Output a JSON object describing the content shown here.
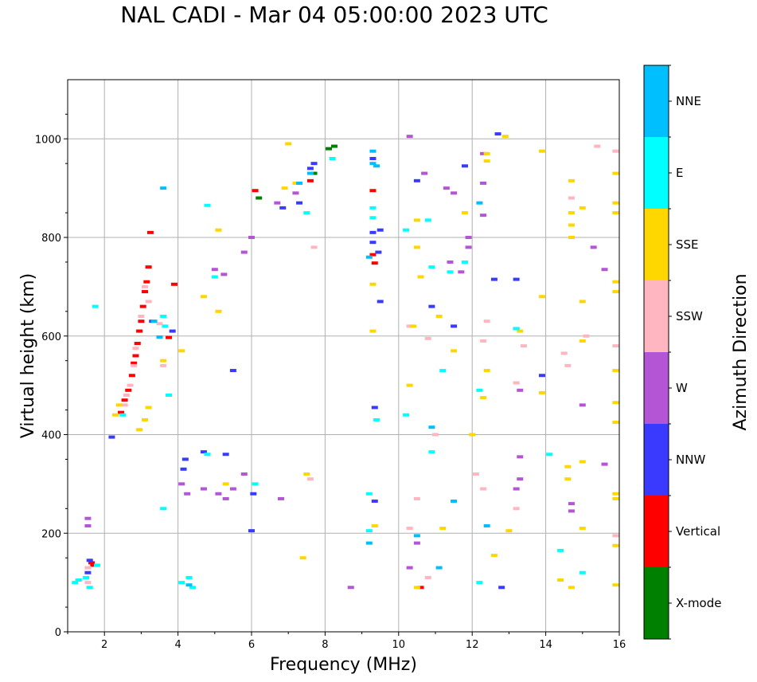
{
  "chart_data": {
    "type": "scatter",
    "title": "NAL CADI - Mar 04 05:00:00 2023 UTC",
    "xlabel": "Frequency (MHz)",
    "ylabel": "Virtual height (km)",
    "xlim": [
      1,
      16
    ],
    "ylim": [
      0,
      1120
    ],
    "grid": true,
    "x_ticks": [
      2,
      4,
      6,
      8,
      10,
      12,
      14,
      16
    ],
    "x_tick_labels": [
      "2",
      "4",
      "6",
      "8",
      "10",
      "12",
      "14",
      "16"
    ],
    "y_ticks": [
      0,
      200,
      400,
      600,
      800,
      1000
    ],
    "y_tick_labels": [
      "0",
      "200",
      "400",
      "600",
      "800",
      "1000"
    ],
    "colorbar": {
      "title": "Azimuth Direction",
      "categories": [
        {
          "name": "X-mode",
          "color": "#008000"
        },
        {
          "name": "Vertical",
          "color": "#ff0000"
        },
        {
          "name": "NNW",
          "color": "#3a3aff"
        },
        {
          "name": "W",
          "color": "#b455d6"
        },
        {
          "name": "SSW",
          "color": "#ffb6c1"
        },
        {
          "name": "SSE",
          "color": "#ffd700"
        },
        {
          "name": "E",
          "color": "#00ffff"
        },
        {
          "name": "NNE",
          "color": "#00bfff"
        }
      ]
    },
    "series": [
      {
        "name": "X-mode",
        "points": [
          [
            8.1,
            980
          ],
          [
            8.25,
            985
          ],
          [
            7.7,
            930
          ],
          [
            6.2,
            880
          ]
        ]
      },
      {
        "name": "Vertical",
        "points": [
          [
            2.45,
            445
          ],
          [
            2.55,
            470
          ],
          [
            2.65,
            490
          ],
          [
            2.75,
            520
          ],
          [
            2.8,
            545
          ],
          [
            2.85,
            560
          ],
          [
            2.9,
            585
          ],
          [
            2.95,
            610
          ],
          [
            3.0,
            630
          ],
          [
            3.05,
            660
          ],
          [
            3.1,
            690
          ],
          [
            3.15,
            710
          ],
          [
            3.2,
            740
          ],
          [
            3.25,
            810
          ],
          [
            3.9,
            705
          ],
          [
            3.75,
            597
          ],
          [
            6.1,
            895
          ],
          [
            7.6,
            915
          ],
          [
            9.3,
            895
          ],
          [
            9.3,
            765
          ],
          [
            9.35,
            748
          ],
          [
            10.6,
            90
          ],
          [
            1.65,
            140
          ],
          [
            1.7,
            135
          ]
        ]
      },
      {
        "name": "NNW",
        "points": [
          [
            1.6,
            145
          ],
          [
            1.55,
            120
          ],
          [
            2.2,
            395
          ],
          [
            3.3,
            630
          ],
          [
            3.85,
            610
          ],
          [
            4.15,
            330
          ],
          [
            4.2,
            350
          ],
          [
            4.7,
            365
          ],
          [
            5.5,
            530
          ],
          [
            5.3,
            360
          ],
          [
            6.0,
            205
          ],
          [
            6.05,
            280
          ],
          [
            6.85,
            860
          ],
          [
            7.3,
            870
          ],
          [
            7.6,
            940
          ],
          [
            7.7,
            950
          ],
          [
            9.3,
            960
          ],
          [
            9.3,
            790
          ],
          [
            9.3,
            810
          ],
          [
            9.5,
            815
          ],
          [
            9.45,
            770
          ],
          [
            9.5,
            670
          ],
          [
            9.35,
            455
          ],
          [
            9.35,
            265
          ],
          [
            10.5,
            915
          ],
          [
            10.9,
            660
          ],
          [
            11.5,
            620
          ],
          [
            12.7,
            1010
          ],
          [
            12.6,
            715
          ],
          [
            13.2,
            715
          ],
          [
            13.2,
            615
          ],
          [
            13.9,
            520
          ],
          [
            11.8,
            945
          ],
          [
            12.8,
            90
          ]
        ]
      },
      {
        "name": "W",
        "points": [
          [
            1.55,
            230
          ],
          [
            1.55,
            215
          ],
          [
            4.1,
            300
          ],
          [
            4.25,
            280
          ],
          [
            4.7,
            290
          ],
          [
            5.1,
            280
          ],
          [
            5.3,
            270
          ],
          [
            5.5,
            290
          ],
          [
            5.8,
            320
          ],
          [
            6.8,
            270
          ],
          [
            5.0,
            735
          ],
          [
            5.25,
            725
          ],
          [
            5.8,
            770
          ],
          [
            6.0,
            800
          ],
          [
            6.7,
            870
          ],
          [
            7.2,
            890
          ],
          [
            8.7,
            90
          ],
          [
            10.3,
            1005
          ],
          [
            10.7,
            930
          ],
          [
            11.3,
            900
          ],
          [
            11.5,
            890
          ],
          [
            12.3,
            970
          ],
          [
            12.3,
            910
          ],
          [
            12.3,
            845
          ],
          [
            11.9,
            800
          ],
          [
            11.4,
            750
          ],
          [
            11.7,
            730
          ],
          [
            11.9,
            780
          ],
          [
            13.3,
            490
          ],
          [
            13.3,
            355
          ],
          [
            13.3,
            310
          ],
          [
            13.2,
            290
          ],
          [
            14.7,
            260
          ],
          [
            14.7,
            245
          ],
          [
            15.0,
            460
          ],
          [
            15.3,
            780
          ],
          [
            15.6,
            735
          ],
          [
            15.6,
            340
          ],
          [
            10.5,
            180
          ],
          [
            10.3,
            130
          ]
        ]
      },
      {
        "name": "SSW",
        "points": [
          [
            2.55,
            460
          ],
          [
            2.6,
            480
          ],
          [
            2.7,
            500
          ],
          [
            2.8,
            540
          ],
          [
            2.85,
            575
          ],
          [
            3.0,
            640
          ],
          [
            3.1,
            700
          ],
          [
            3.2,
            670
          ],
          [
            3.5,
            625
          ],
          [
            3.6,
            540
          ],
          [
            1.55,
            100
          ],
          [
            1.55,
            130
          ],
          [
            7.6,
            310
          ],
          [
            7.7,
            780
          ],
          [
            10.3,
            620
          ],
          [
            10.8,
            595
          ],
          [
            11.0,
            400
          ],
          [
            10.5,
            270
          ],
          [
            10.3,
            210
          ],
          [
            10.8,
            110
          ],
          [
            12.1,
            320
          ],
          [
            12.3,
            290
          ],
          [
            12.4,
            630
          ],
          [
            13.2,
            505
          ],
          [
            13.4,
            580
          ],
          [
            14.7,
            880
          ],
          [
            14.6,
            540
          ],
          [
            14.5,
            565
          ],
          [
            15.1,
            600
          ],
          [
            15.4,
            985
          ],
          [
            15.9,
            975
          ],
          [
            15.9,
            580
          ],
          [
            15.9,
            195
          ],
          [
            12.3,
            590
          ],
          [
            13.2,
            250
          ]
        ]
      },
      {
        "name": "SSE",
        "points": [
          [
            2.3,
            440
          ],
          [
            2.4,
            460
          ],
          [
            2.95,
            410
          ],
          [
            3.1,
            430
          ],
          [
            3.2,
            455
          ],
          [
            3.6,
            550
          ],
          [
            4.1,
            570
          ],
          [
            4.7,
            680
          ],
          [
            5.1,
            815
          ],
          [
            5.1,
            650
          ],
          [
            5.3,
            300
          ],
          [
            7.0,
            990
          ],
          [
            6.9,
            900
          ],
          [
            7.2,
            910
          ],
          [
            7.5,
            320
          ],
          [
            7.4,
            150
          ],
          [
            9.3,
            705
          ],
          [
            9.3,
            610
          ],
          [
            9.35,
            215
          ],
          [
            10.5,
            835
          ],
          [
            10.5,
            780
          ],
          [
            10.6,
            720
          ],
          [
            10.4,
            620
          ],
          [
            10.3,
            500
          ],
          [
            11.1,
            640
          ],
          [
            11.5,
            570
          ],
          [
            11.8,
            850
          ],
          [
            12.4,
            970
          ],
          [
            12.4,
            955
          ],
          [
            12.4,
            530
          ],
          [
            12.3,
            475
          ],
          [
            12.6,
            155
          ],
          [
            12.9,
            1005
          ],
          [
            13.3,
            610
          ],
          [
            13.9,
            975
          ],
          [
            13.9,
            680
          ],
          [
            13.9,
            485
          ],
          [
            14.7,
            915
          ],
          [
            14.7,
            850
          ],
          [
            14.7,
            825
          ],
          [
            14.7,
            800
          ],
          [
            14.6,
            335
          ],
          [
            14.6,
            310
          ],
          [
            15.0,
            860
          ],
          [
            15.0,
            670
          ],
          [
            15.0,
            590
          ],
          [
            15.0,
            345
          ],
          [
            15.0,
            210
          ],
          [
            15.9,
            930
          ],
          [
            15.9,
            870
          ],
          [
            15.9,
            850
          ],
          [
            15.9,
            710
          ],
          [
            15.9,
            690
          ],
          [
            15.9,
            530
          ],
          [
            15.9,
            465
          ],
          [
            15.9,
            425
          ],
          [
            15.9,
            280
          ],
          [
            15.9,
            270
          ],
          [
            15.9,
            175
          ],
          [
            15.9,
            95
          ],
          [
            14.4,
            105
          ],
          [
            14.7,
            90
          ],
          [
            11.2,
            210
          ],
          [
            12.0,
            400
          ],
          [
            13.0,
            205
          ],
          [
            10.5,
            90
          ]
        ]
      },
      {
        "name": "E",
        "points": [
          [
            1.2,
            100
          ],
          [
            1.3,
            105
          ],
          [
            1.5,
            110
          ],
          [
            1.6,
            90
          ],
          [
            1.8,
            135
          ],
          [
            1.75,
            660
          ],
          [
            2.5,
            440
          ],
          [
            3.6,
            640
          ],
          [
            3.65,
            620
          ],
          [
            3.75,
            480
          ],
          [
            4.4,
            90
          ],
          [
            4.3,
            110
          ],
          [
            4.8,
            865
          ],
          [
            4.8,
            360
          ],
          [
            5.0,
            720
          ],
          [
            6.1,
            300
          ],
          [
            7.5,
            850
          ],
          [
            8.2,
            960
          ],
          [
            9.3,
            860
          ],
          [
            9.3,
            840
          ],
          [
            9.2,
            280
          ],
          [
            9.2,
            205
          ],
          [
            9.4,
            430
          ],
          [
            10.2,
            815
          ],
          [
            10.2,
            440
          ],
          [
            10.8,
            835
          ],
          [
            10.9,
            365
          ],
          [
            10.9,
            740
          ],
          [
            11.2,
            530
          ],
          [
            11.4,
            730
          ],
          [
            11.8,
            750
          ],
          [
            12.2,
            490
          ],
          [
            12.2,
            100
          ],
          [
            13.2,
            615
          ],
          [
            14.1,
            360
          ],
          [
            14.4,
            165
          ],
          [
            15.0,
            120
          ],
          [
            3.6,
            250
          ],
          [
            4.1,
            100
          ]
        ]
      },
      {
        "name": "NNE",
        "points": [
          [
            3.6,
            900
          ],
          [
            3.35,
            630
          ],
          [
            3.5,
            598
          ],
          [
            4.3,
            95
          ],
          [
            7.3,
            910
          ],
          [
            7.6,
            930
          ],
          [
            9.3,
            975
          ],
          [
            9.3,
            950
          ],
          [
            9.4,
            945
          ],
          [
            9.2,
            760
          ],
          [
            9.2,
            180
          ],
          [
            10.9,
            415
          ],
          [
            11.1,
            130
          ],
          [
            11.5,
            265
          ],
          [
            10.5,
            195
          ],
          [
            12.2,
            870
          ],
          [
            12.4,
            215
          ]
        ]
      }
    ]
  }
}
